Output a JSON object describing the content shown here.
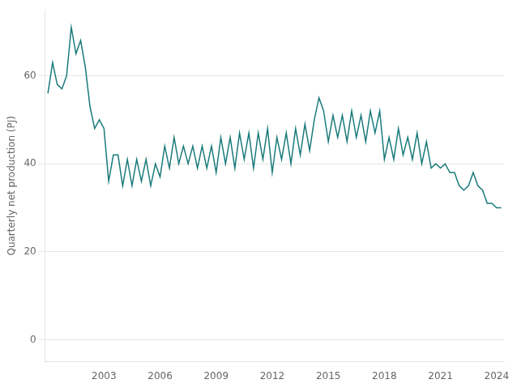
{
  "chart_data": {
    "type": "line",
    "ylabel": "Quarterly net production (PJ)",
    "color": "#1a7a7a",
    "grid": "y",
    "ylim": [
      -5,
      75
    ],
    "yticks": [
      0,
      20,
      40,
      60
    ],
    "xlim": [
      1999.85,
      2024.4
    ],
    "xticks": [
      2003,
      2006,
      2009,
      2012,
      2015,
      2018,
      2021,
      2024
    ],
    "x": [
      2000.0,
      2000.25,
      2000.5,
      2000.75,
      2001.0,
      2001.25,
      2001.5,
      2001.75,
      2002.0,
      2002.25,
      2002.5,
      2002.75,
      2003.0,
      2003.25,
      2003.5,
      2003.75,
      2004.0,
      2004.25,
      2004.5,
      2004.75,
      2005.0,
      2005.25,
      2005.5,
      2005.75,
      2006.0,
      2006.25,
      2006.5,
      2006.75,
      2007.0,
      2007.25,
      2007.5,
      2007.75,
      2008.0,
      2008.25,
      2008.5,
      2008.75,
      2009.0,
      2009.25,
      2009.5,
      2009.75,
      2010.0,
      2010.25,
      2010.5,
      2010.75,
      2011.0,
      2011.25,
      2011.5,
      2011.75,
      2012.0,
      2012.25,
      2012.5,
      2012.75,
      2013.0,
      2013.25,
      2013.5,
      2013.75,
      2014.0,
      2014.25,
      2014.5,
      2014.75,
      2015.0,
      2015.25,
      2015.5,
      2015.75,
      2016.0,
      2016.25,
      2016.5,
      2016.75,
      2017.0,
      2017.25,
      2017.5,
      2017.75,
      2018.0,
      2018.25,
      2018.5,
      2018.75,
      2019.0,
      2019.25,
      2019.5,
      2019.75,
      2020.0,
      2020.25,
      2020.5,
      2020.75,
      2021.0,
      2021.25,
      2021.5,
      2021.75,
      2022.0,
      2022.25,
      2022.5,
      2022.75,
      2023.0,
      2023.25,
      2023.5,
      2023.75,
      2024.0,
      2024.25
    ],
    "values": [
      56.0,
      63.0,
      58.0,
      57.0,
      60.0,
      71.0,
      65.0,
      68.0,
      62.0,
      53.0,
      48.0,
      50.0,
      48.0,
      36.0,
      42.0,
      42.0,
      35.0,
      41.0,
      35.0,
      41.0,
      36.0,
      41.0,
      35.0,
      40.0,
      37.0,
      44.0,
      39.0,
      46.0,
      40.0,
      44.0,
      40.0,
      44.0,
      39.0,
      44.0,
      39.0,
      44.0,
      38.0,
      46.0,
      40.0,
      46.0,
      39.0,
      47.0,
      41.0,
      47.0,
      39.0,
      47.0,
      41.0,
      48.0,
      38.0,
      46.0,
      41.0,
      47.0,
      40.0,
      48.0,
      42.0,
      49.0,
      43.0,
      50.0,
      55.0,
      52.0,
      45.0,
      51.0,
      46.0,
      51.0,
      45.0,
      52.0,
      46.0,
      51.0,
      45.0,
      52.0,
      47.0,
      52.0,
      41.0,
      46.0,
      41.0,
      48.0,
      42.0,
      46.0,
      41.0,
      47.0,
      40.0,
      45.0,
      39.0,
      40.0,
      39.0,
      40.0,
      38.0,
      38.0,
      35.0,
      34.0,
      35.0,
      38.0,
      35.0,
      34.0,
      31.0,
      31.0,
      30.0,
      30.0
    ]
  }
}
